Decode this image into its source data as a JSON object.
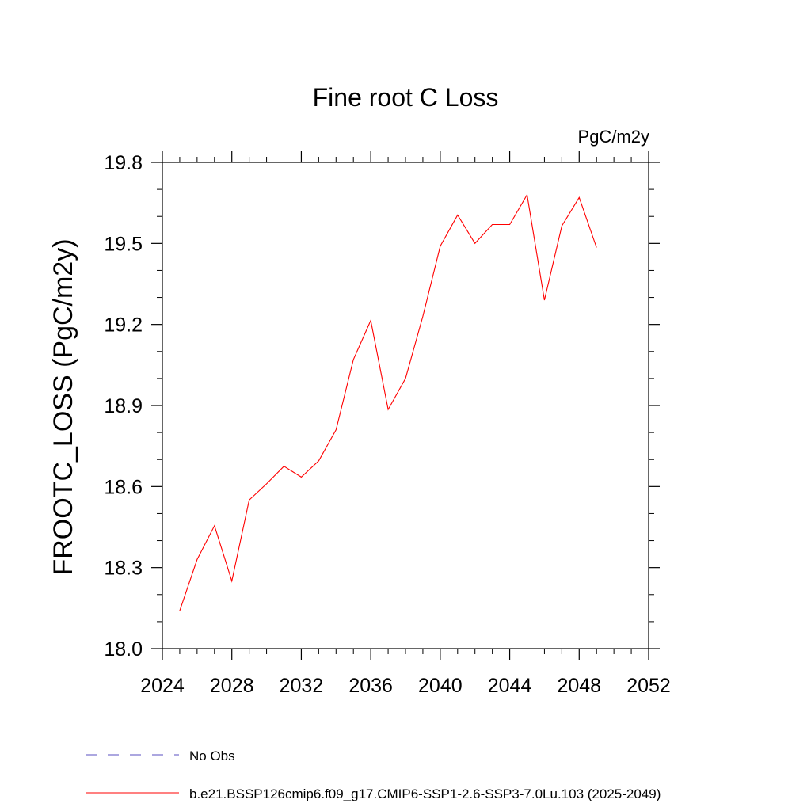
{
  "chart_data": {
    "type": "line",
    "title": "Fine root C Loss",
    "units": "PgC/m2y",
    "xlabel": "",
    "ylabel": "FROOTC_LOSS  (PgC/m2y)",
    "xlim": [
      2024,
      2052
    ],
    "ylim": [
      18.0,
      19.8
    ],
    "xticks": [
      "2024",
      "2028",
      "2032",
      "2036",
      "2040",
      "2044",
      "2048",
      "2052"
    ],
    "yticks": [
      "18.0",
      "18.3",
      "18.6",
      "18.9",
      "19.2",
      "19.5",
      "19.8"
    ],
    "grid": false,
    "legend_position": "bottom",
    "series": [
      {
        "name": "b.e21.BSSP126cmip6.f09_g17.CMIP6-SSP1-2.6-SSP3-7.0Lu.103 (2025-2049)",
        "color": "#ff0000",
        "x": [
          2025,
          2026,
          2027,
          2028,
          2029,
          2030,
          2031,
          2032,
          2033,
          2034,
          2035,
          2036,
          2037,
          2038,
          2039,
          2040,
          2041,
          2042,
          2043,
          2044,
          2045,
          2046,
          2047,
          2048,
          2049
        ],
        "y": [
          18.14,
          18.33,
          18.455,
          18.25,
          18.55,
          18.61,
          18.675,
          18.635,
          18.695,
          18.81,
          19.07,
          19.215,
          18.885,
          19.0,
          19.23,
          19.49,
          19.605,
          19.5,
          19.57,
          19.57,
          19.68,
          19.29,
          19.565,
          19.67,
          19.485
        ]
      }
    ],
    "legend": [
      {
        "label": "No Obs",
        "color": "#5a4fc0",
        "style": "dashed"
      },
      {
        "label": "b.e21.BSSP126cmip6.f09_g17.CMIP6-SSP1-2.6-SSP3-7.0Lu.103 (2025-2049)",
        "color": "#ff0000",
        "style": "solid"
      }
    ]
  }
}
